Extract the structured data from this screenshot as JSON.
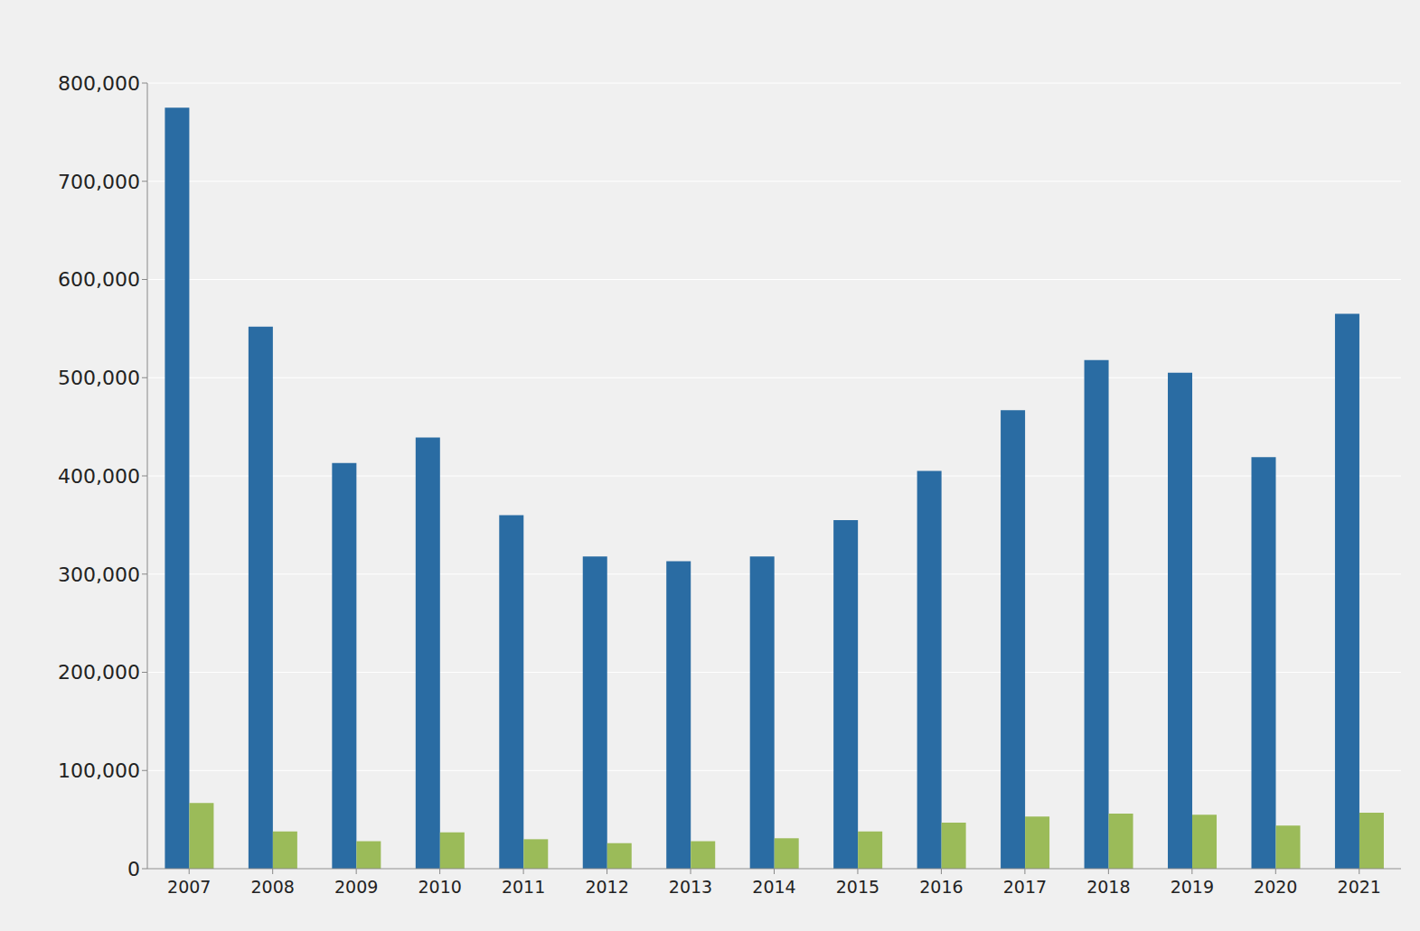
{
  "chart_data": {
    "type": "bar",
    "categories": [
      "2007",
      "2008",
      "2009",
      "2010",
      "2011",
      "2012",
      "2013",
      "2014",
      "2015",
      "2016",
      "2017",
      "2018",
      "2019",
      "2020",
      "2021"
    ],
    "series": [
      {
        "color": "#2a6ca3",
        "values": [
          775000,
          552000,
          413000,
          439000,
          360000,
          318000,
          313000,
          318000,
          355000,
          405000,
          467000,
          518000,
          505000,
          419000,
          565000
        ]
      },
      {
        "color": "#9bbb59",
        "values": [
          67000,
          38000,
          28000,
          37000,
          30000,
          26000,
          28000,
          31000,
          38000,
          47000,
          53000,
          56000,
          55000,
          44000,
          57000
        ]
      }
    ],
    "ylim": [
      0,
      800000
    ],
    "yticks": [
      0,
      {
        "value": 100000,
        "label": "100,000"
      },
      {
        "value": 200000,
        "label": "200,000"
      },
      {
        "value": 300000,
        "label": "300,000"
      },
      {
        "value": 400000,
        "label": "400,000"
      },
      {
        "value": 500000,
        "label": "500,000"
      },
      {
        "value": 600000,
        "label": "600,000"
      },
      {
        "value": 700000,
        "label": "700,000"
      },
      {
        "value": 800000,
        "label": "800,000"
      }
    ],
    "grid": true
  }
}
